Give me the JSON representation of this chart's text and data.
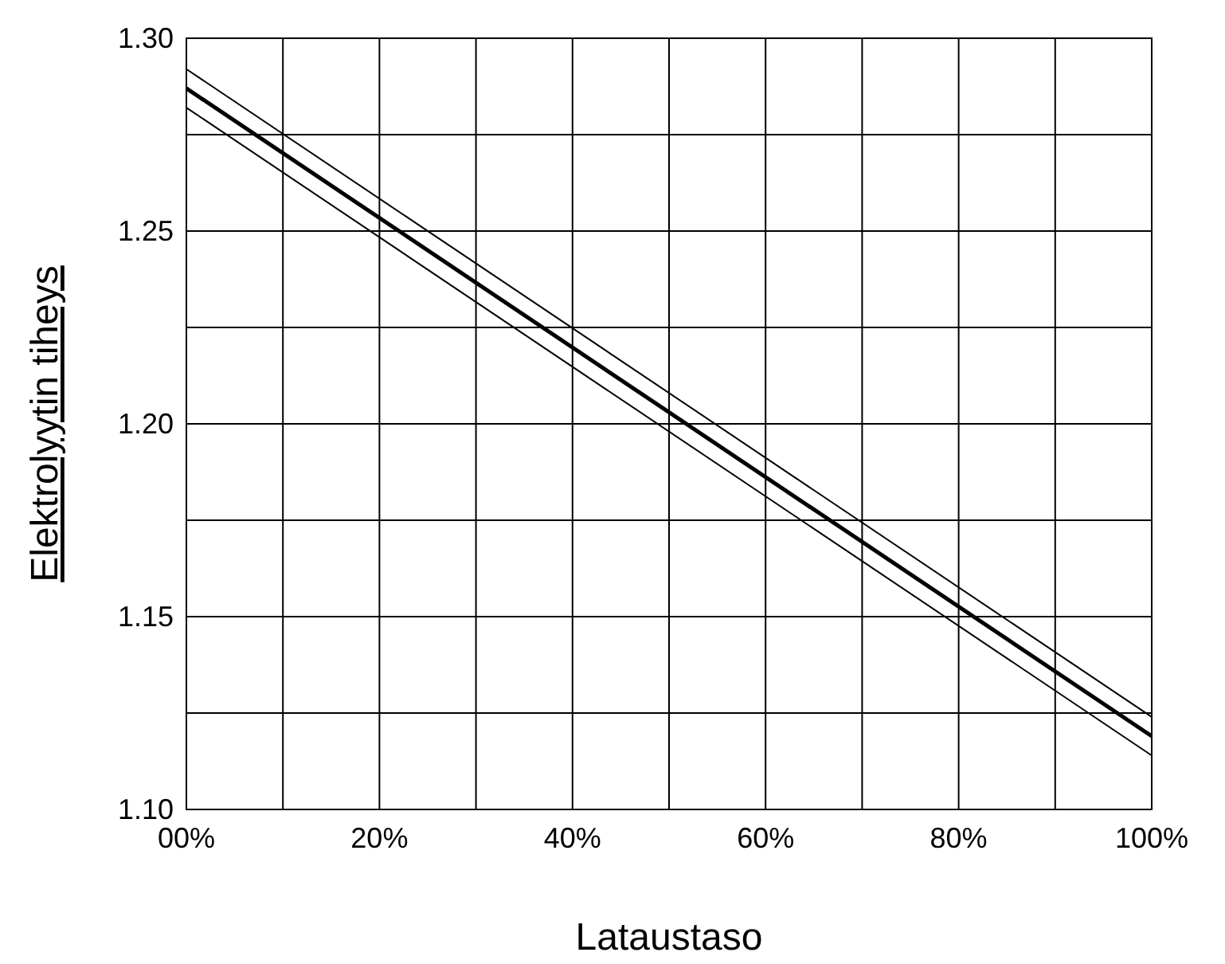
{
  "chart_data": {
    "type": "line",
    "xlabel": "Lataustaso",
    "ylabel": "Elektrolyytin tiheys",
    "x": [
      0,
      100
    ],
    "series": [
      {
        "color": "#000000",
        "values": [
          1.287,
          1.119
        ]
      },
      {
        "color": "#000000",
        "values": [
          1.292,
          1.124
        ]
      },
      {
        "color": "#000000",
        "values": [
          1.282,
          1.114
        ]
      }
    ],
    "xlim": [
      0,
      100
    ],
    "xticks": [
      {
        "value": 0,
        "label": "00%"
      },
      {
        "value": 10,
        "label": null
      },
      {
        "value": 20,
        "label": "20%"
      },
      {
        "value": 30,
        "label": null
      },
      {
        "value": 40,
        "label": "40%"
      },
      {
        "value": 50,
        "label": null
      },
      {
        "value": 60,
        "label": "60%"
      },
      {
        "value": 70,
        "label": null
      },
      {
        "value": 80,
        "label": "80%"
      },
      {
        "value": 90,
        "label": null
      },
      {
        "value": 100,
        "label": "100%"
      }
    ],
    "ylim": [
      1.1,
      1.3
    ],
    "yticks": [
      {
        "value": 1.1,
        "label": "1.10"
      },
      {
        "value": 1.125,
        "label": null
      },
      {
        "value": 1.15,
        "label": "1.15"
      },
      {
        "value": 1.175,
        "label": null
      },
      {
        "value": 1.2,
        "label": "1.20"
      },
      {
        "value": 1.225,
        "label": null
      },
      {
        "value": 1.25,
        "label": "1.25"
      },
      {
        "value": 1.275,
        "label": null
      },
      {
        "value": 1.3,
        "label": "1.30"
      }
    ],
    "grid": true,
    "marker": "none",
    "line_style": "solid"
  }
}
